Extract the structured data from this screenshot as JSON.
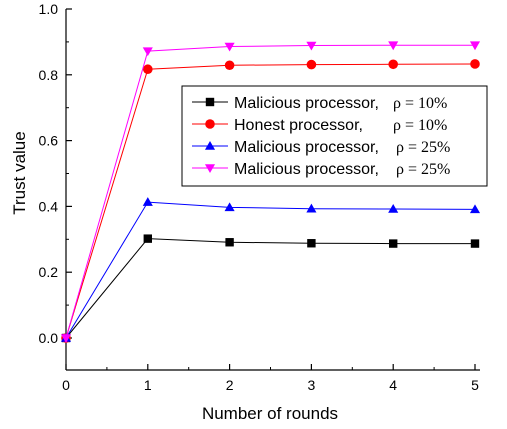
{
  "chart_data": {
    "type": "line",
    "title": "",
    "xlabel": "Number of rounds",
    "ylabel": "Trust value",
    "x": [
      0,
      1,
      2,
      3,
      4,
      5
    ],
    "xlim": [
      0,
      5
    ],
    "ylim": [
      0.0,
      1.0
    ],
    "xticks": [
      "0",
      "1",
      "2",
      "3",
      "4",
      "5"
    ],
    "yticks": [
      "0.0",
      "0.2",
      "0.4",
      "0.6",
      "0.8",
      "1.0"
    ],
    "grid": false,
    "legend_position": "center-right",
    "series": [
      {
        "name": "Malicious processor,",
        "rho": "ρ = 10%",
        "color": "#000000",
        "marker": "square",
        "values": [
          0.0,
          0.302,
          0.291,
          0.288,
          0.287,
          0.287
        ]
      },
      {
        "name": "Honest processor,",
        "rho": "ρ = 10%",
        "color": "#ff0000",
        "marker": "circle",
        "values": [
          0.0,
          0.817,
          0.829,
          0.831,
          0.832,
          0.833
        ]
      },
      {
        "name": "Malicious processor,",
        "rho": "ρ = 25%",
        "color": "#0000ff",
        "marker": "triangle-up",
        "values": [
          0.0,
          0.413,
          0.397,
          0.393,
          0.392,
          0.391
        ]
      },
      {
        "name": "Malicious processor,",
        "rho": "ρ = 25%",
        "color": "#ff00ff",
        "marker": "triangle-down",
        "values": [
          0.0,
          0.872,
          0.886,
          0.889,
          0.89,
          0.89
        ]
      }
    ]
  }
}
